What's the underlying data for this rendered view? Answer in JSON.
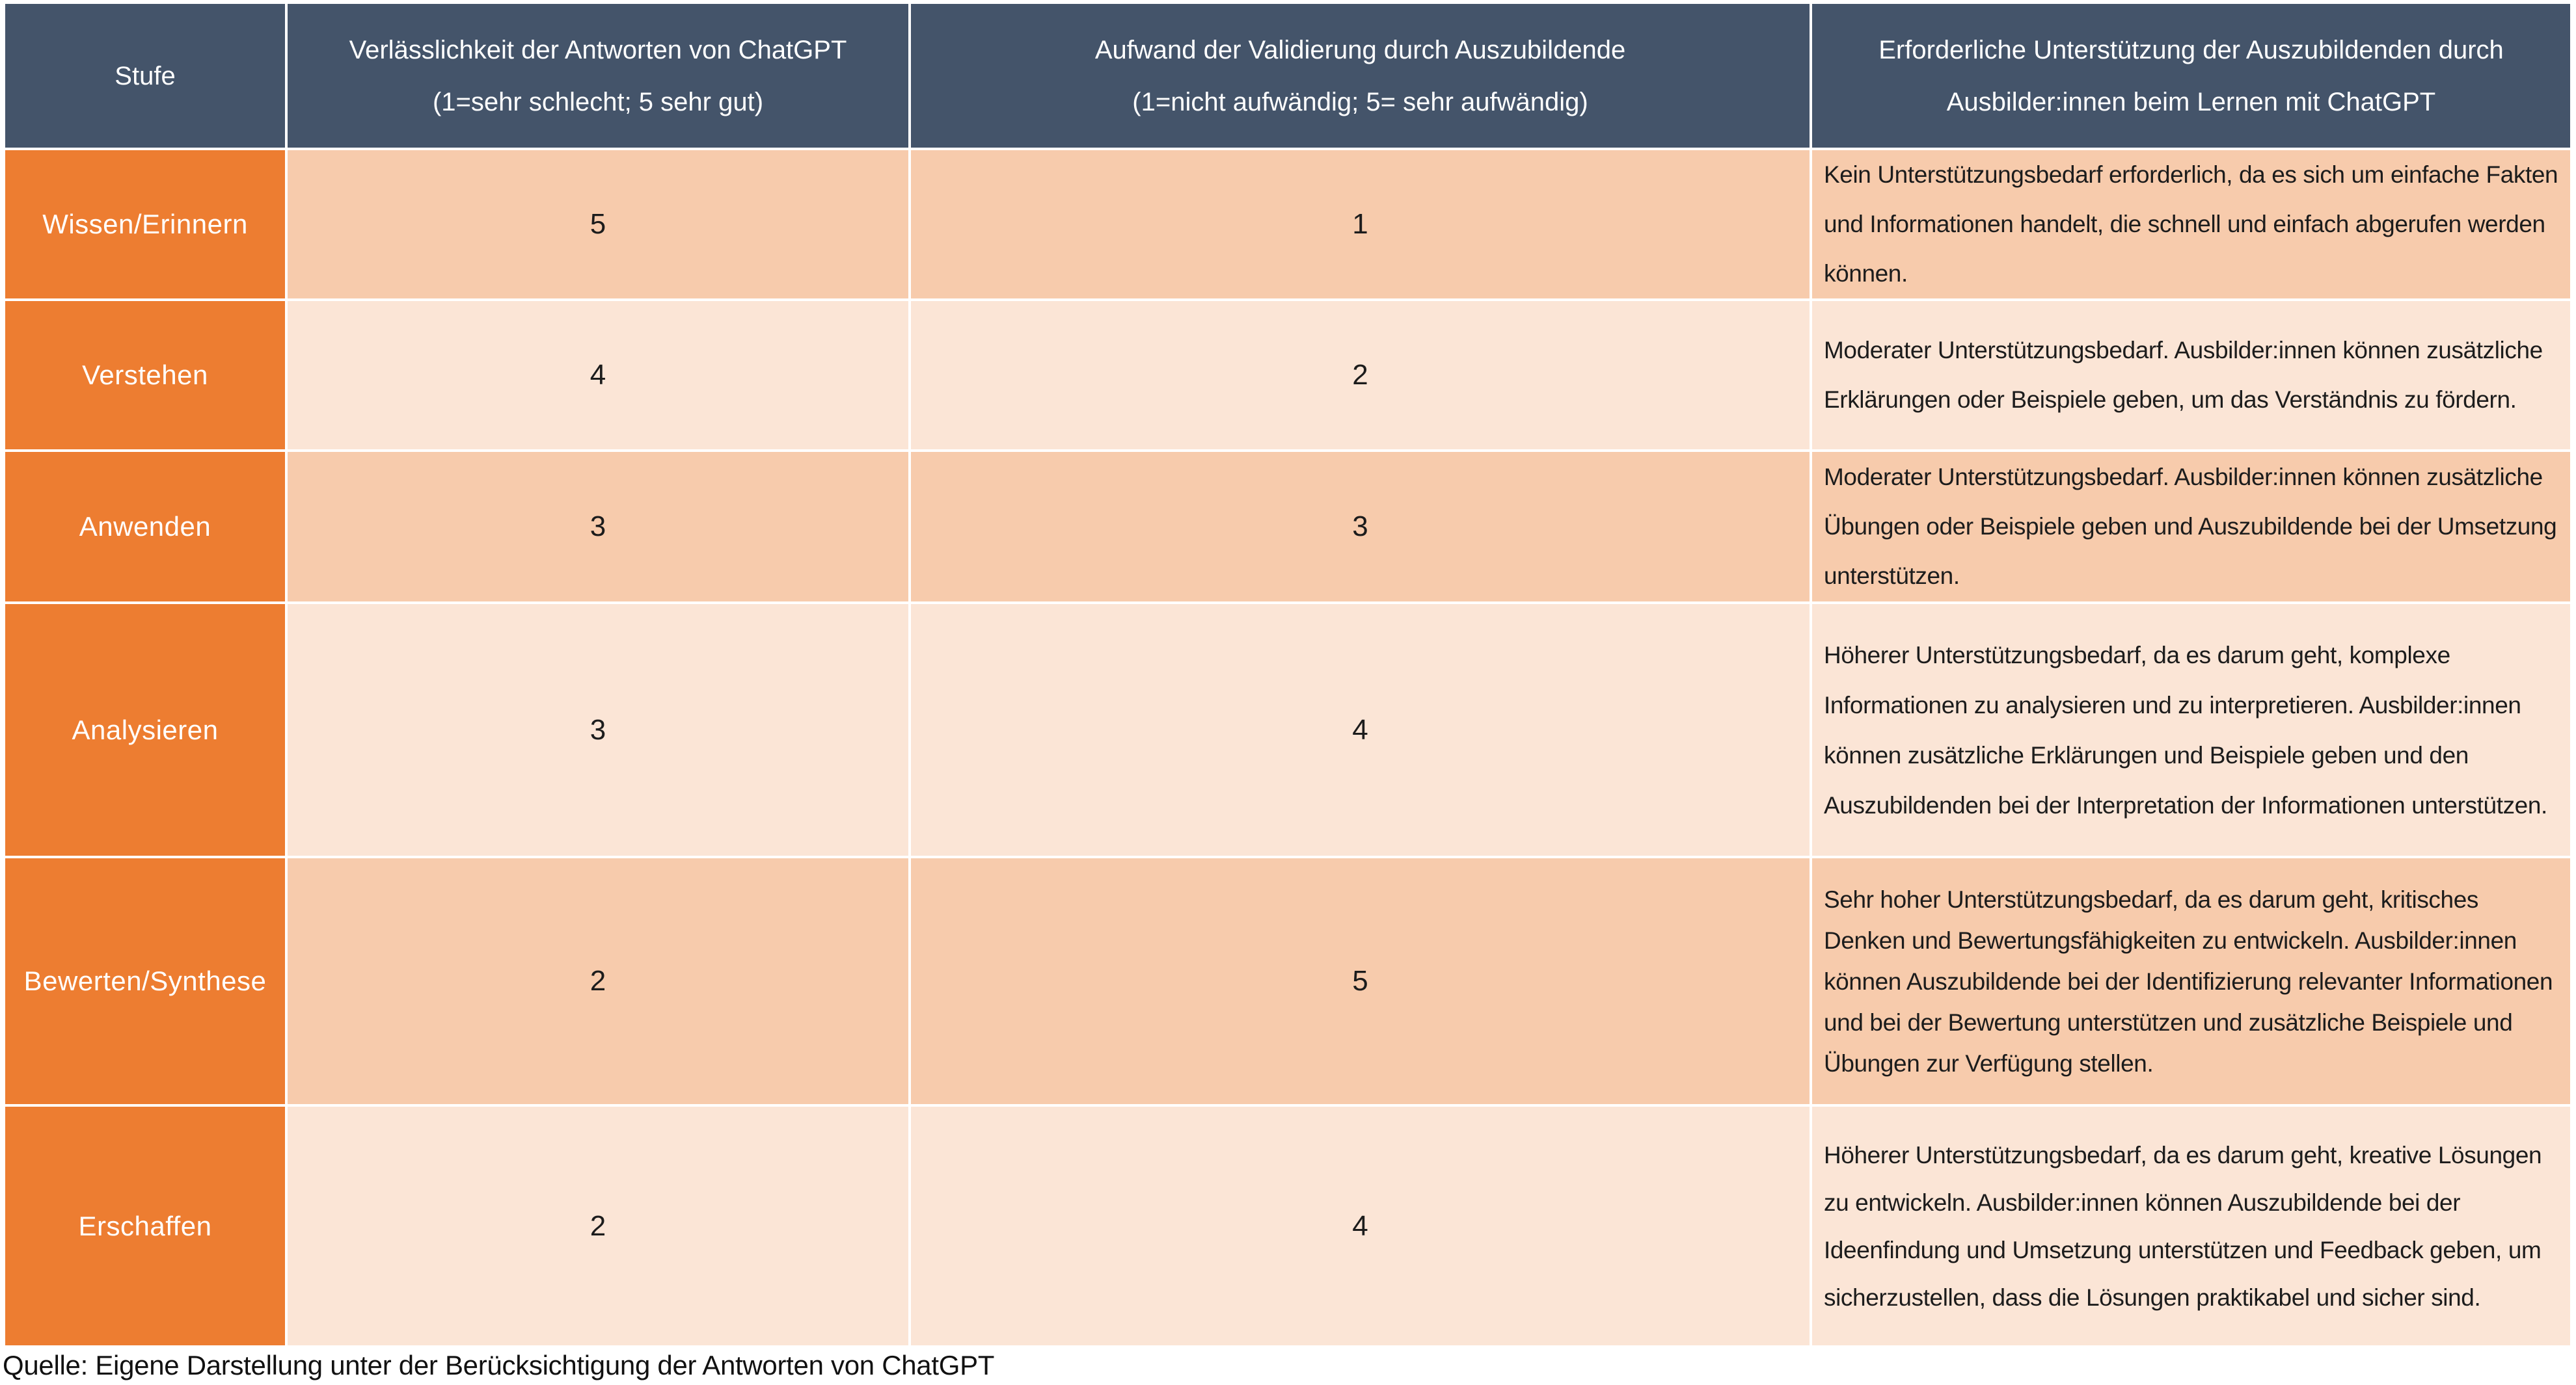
{
  "colors": {
    "header_bg": "#44546A",
    "stufe_col_bg": "#ED7D31",
    "row_shade_dark": "#F7CBAC",
    "row_shade_light": "#FBE5D6",
    "header_text": "#FFFFFF",
    "body_text": "#1C1C1C",
    "gridline": "#FFFFFF"
  },
  "table": {
    "header": {
      "col1": "Stufe",
      "col2_line1": "Verlässlichkeit der Antworten von ChatGPT",
      "col2_line2": "(1=sehr schlecht; 5 sehr gut)",
      "col3_line1": "Aufwand der Validierung durch Auszubildende",
      "col3_line2": "(1=nicht aufwändig; 5= sehr aufwändig)",
      "col4_line1": "Erforderliche Unterstützung der Auszubildenden durch",
      "col4_line2": "Ausbilder:innen beim Lernen mit ChatGPT"
    },
    "rows": [
      {
        "stufe": "Wissen/Erinnern",
        "verlaesslichkeit": "5",
        "aufwand": "1",
        "unterstuetzung": "Kein Unterstützungsbedarf erforderlich, da es sich um einfache Fakten und Informationen handelt, die schnell und einfach abgerufen werden können."
      },
      {
        "stufe": "Verstehen",
        "verlaesslichkeit": "4",
        "aufwand": "2",
        "unterstuetzung": "Moderater Unterstützungsbedarf. Ausbilder:innen können zusätzliche Erklärungen oder Beispiele geben, um das Verständnis zu fördern."
      },
      {
        "stufe": "Anwenden",
        "verlaesslichkeit": "3",
        "aufwand": "3",
        "unterstuetzung": "Moderater Unterstützungsbedarf. Ausbilder:innen können zusätzliche Übungen oder Beispiele geben und Auszubildende bei der Umsetzung unterstützen."
      },
      {
        "stufe": "Analysieren",
        "verlaesslichkeit": "3",
        "aufwand": "4",
        "unterstuetzung": "Höherer Unterstützungsbedarf, da es darum geht, komplexe Informationen zu analysieren und zu interpretieren. Ausbilder:innen können zusätzliche Erklärungen und Beispiele geben und den Auszubildenden bei der Interpretation der Informationen unterstützen."
      },
      {
        "stufe": "Bewerten/Synthese",
        "verlaesslichkeit": "2",
        "aufwand": "5",
        "unterstuetzung": "Sehr hoher Unterstützungsbedarf, da es darum geht, kritisches Denken und Bewertungsfähigkeiten zu entwickeln. Ausbilder:innen können Auszubildende bei der Identifizierung relevanter Informationen und bei der Bewertung unterstützen und zusätzliche Beispiele und Übungen zur Verfügung stellen."
      },
      {
        "stufe": "Erschaffen",
        "verlaesslichkeit": "2",
        "aufwand": "4",
        "unterstuetzung": "Höherer Unterstützungsbedarf, da es darum geht, kreative Lösungen zu entwickeln. Ausbilder:innen können Auszubildende bei der Ideenfindung und Umsetzung unterstützen und Feedback geben, um sicherzustellen, dass die Lösungen praktikabel und sicher sind."
      }
    ]
  },
  "footer": {
    "source_note": "Quelle: Eigene Darstellung unter der Berücksichtigung der Antworten von ChatGPT"
  }
}
